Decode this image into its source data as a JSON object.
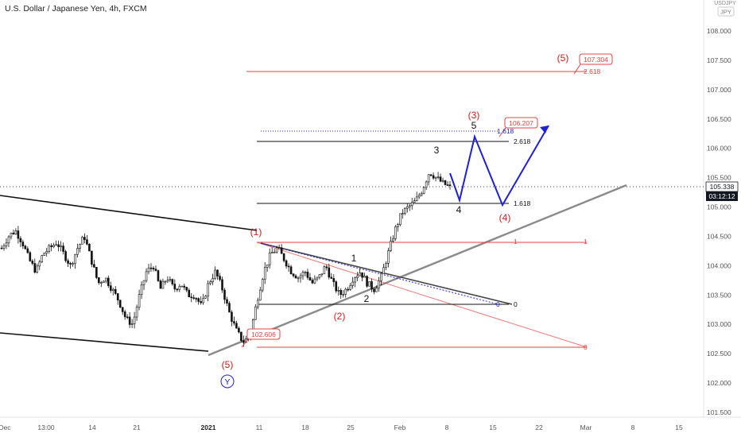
{
  "header": {
    "title": "U.S. Dollar / Japanese Yen, 4h, FXCM",
    "currency_badge": "JPY",
    "currency_top": "USDJPY"
  },
  "price_axis": {
    "labels": [
      "108.000",
      "107.500",
      "107.000",
      "106.500",
      "106.000",
      "105.500",
      "105.000",
      "104.500",
      "104.000",
      "103.500",
      "103.000",
      "102.500",
      "102.000",
      "101.500"
    ],
    "current_price": "105.338",
    "countdown": "03:12:12",
    "current_price_color": "#131722"
  },
  "time_axis": {
    "labels": [
      "Dec",
      "13:00",
      "14",
      "21",
      "2021",
      "11",
      "18",
      "25",
      "Feb",
      "8",
      "15",
      "22",
      "Mar",
      "8",
      "15"
    ]
  },
  "colors": {
    "candle": "#111111",
    "red": "#e84040",
    "blue": "#1f1fd8",
    "grey_line": "#8a8a8a",
    "black_line": "#111111"
  },
  "annotations": {
    "box_top": "107.304",
    "box_mid": "106.207",
    "box_low": "102.606",
    "wave_red": [
      "(5)",
      "(3)",
      "(4)",
      "(1)",
      "(2)",
      "(5)"
    ],
    "wave_black": [
      "5",
      "3",
      "4",
      "1",
      "2"
    ],
    "wave_circle": "Y",
    "fib_2618_top": "2.618",
    "fib_2618": "2.618",
    "fib_1618_blue": "1.618",
    "fib_1618": "1.618",
    "fib_1_red": "1",
    "fib_1_red_right": "1",
    "fib_0_black": "0",
    "fib_0_blue": "0",
    "fib_0_red": "0"
  },
  "chart_data": {
    "type": "candlestick",
    "title": "U.S. Dollar / Japanese Yen, 4h, FXCM",
    "ylim": [
      101.3,
      108.5
    ],
    "x_ticks": [
      "Dec",
      "13:00",
      "14",
      "21",
      "2021",
      "11",
      "18",
      "25",
      "Feb",
      "8",
      "15",
      "22",
      "Mar",
      "8",
      "15"
    ],
    "last_price": 105.338,
    "levels": {
      "red_top_2618": 107.304,
      "black_2618": 106.12,
      "black_1618": 105.05,
      "red_1": 104.42,
      "black_0": 103.33,
      "red_0": 102.606
    },
    "price_path_closes": [
      104.3,
      104.5,
      104.6,
      104.4,
      104.1,
      103.9,
      104.2,
      104.3,
      104.4,
      104.2,
      104.0,
      104.3,
      104.5,
      104.1,
      103.7,
      103.8,
      103.6,
      103.4,
      103.1,
      103.0,
      103.5,
      103.9,
      104.0,
      103.6,
      103.8,
      103.6,
      103.7,
      103.5,
      103.5,
      103.3,
      103.7,
      103.9,
      103.6,
      103.2,
      102.9,
      102.7,
      102.8,
      103.4,
      103.9,
      104.2,
      104.3,
      104.1,
      103.9,
      103.8,
      103.9,
      103.7,
      103.8,
      104.0,
      103.7,
      103.5,
      103.6,
      103.8,
      103.9,
      103.7,
      103.6,
      103.8,
      104.2,
      104.6,
      104.9,
      105.0,
      105.1,
      105.3,
      105.6,
      105.5,
      105.4,
      105.34
    ],
    "projection_blue": [
      [
        105.6,
        105.1
      ],
      [
        105.1,
        106.2
      ],
      [
        106.2,
        105.0
      ],
      [
        105.0,
        106.35
      ]
    ]
  }
}
